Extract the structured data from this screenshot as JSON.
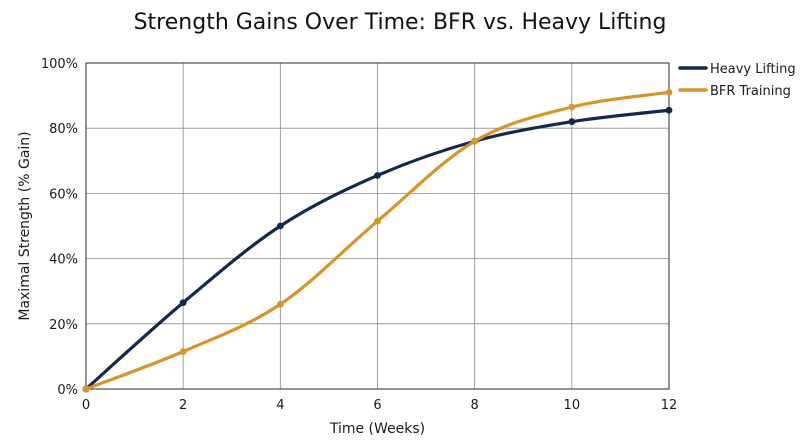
{
  "chart_data": {
    "type": "line",
    "title": "Strength Gains Over Time: BFR vs. Heavy Lifting",
    "xlabel": "Time (Weeks)",
    "ylabel": "Maximal Strength (% Gain)",
    "x": [
      0,
      2,
      4,
      6,
      8,
      10,
      12
    ],
    "xlim": [
      0,
      12
    ],
    "ylim": [
      0,
      100
    ],
    "x_ticks": [
      "0",
      "2",
      "4",
      "6",
      "8",
      "10",
      "12"
    ],
    "y_ticks": [
      "0%",
      "20%",
      "40%",
      "60%",
      "80%",
      "100%"
    ],
    "grid": true,
    "legend_position": "top-right",
    "series": [
      {
        "name": "Heavy Lifting",
        "color": "#14284b",
        "values": [
          0,
          26.5,
          50,
          65.5,
          76,
          82,
          85.5
        ]
      },
      {
        "name": "BFR Training",
        "color": "#d4962a",
        "values": [
          0,
          11.5,
          26,
          51.5,
          76,
          86.5,
          91
        ]
      }
    ]
  }
}
